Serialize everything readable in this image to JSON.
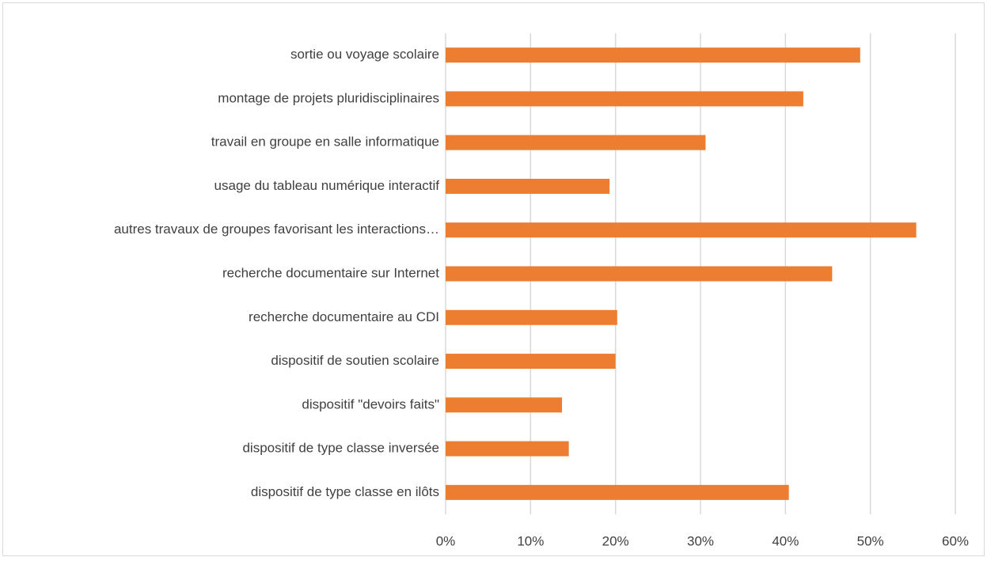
{
  "chart_data": {
    "type": "barh",
    "categories": [
      "sortie ou voyage scolaire",
      "montage de projets pluridisciplinaires",
      "travail en groupe en salle informatique",
      "usage du tableau numérique interactif",
      "autres travaux de groupes favorisant les interactions…",
      "recherche documentaire sur Internet",
      "recherche documentaire au CDI",
      "dispositif de soutien scolaire",
      "dispositif \"devoirs faits\"",
      "dispositif de type classe inversée",
      "dispositif de type classe en ilôts"
    ],
    "values": [
      48.8,
      42.1,
      30.6,
      19.3,
      55.4,
      45.5,
      20.2,
      20.0,
      13.7,
      14.5,
      40.4
    ],
    "color": "#ed7d31",
    "xlim": [
      0,
      60
    ],
    "xticks": [
      {
        "value": 0,
        "label": "0%"
      },
      {
        "value": 10,
        "label": "10%"
      },
      {
        "value": 20,
        "label": "20%"
      },
      {
        "value": 30,
        "label": "30%"
      },
      {
        "value": 40,
        "label": "40%"
      },
      {
        "value": 50,
        "label": "50%"
      },
      {
        "value": 60,
        "label": "60%"
      }
    ],
    "grid": true
  }
}
